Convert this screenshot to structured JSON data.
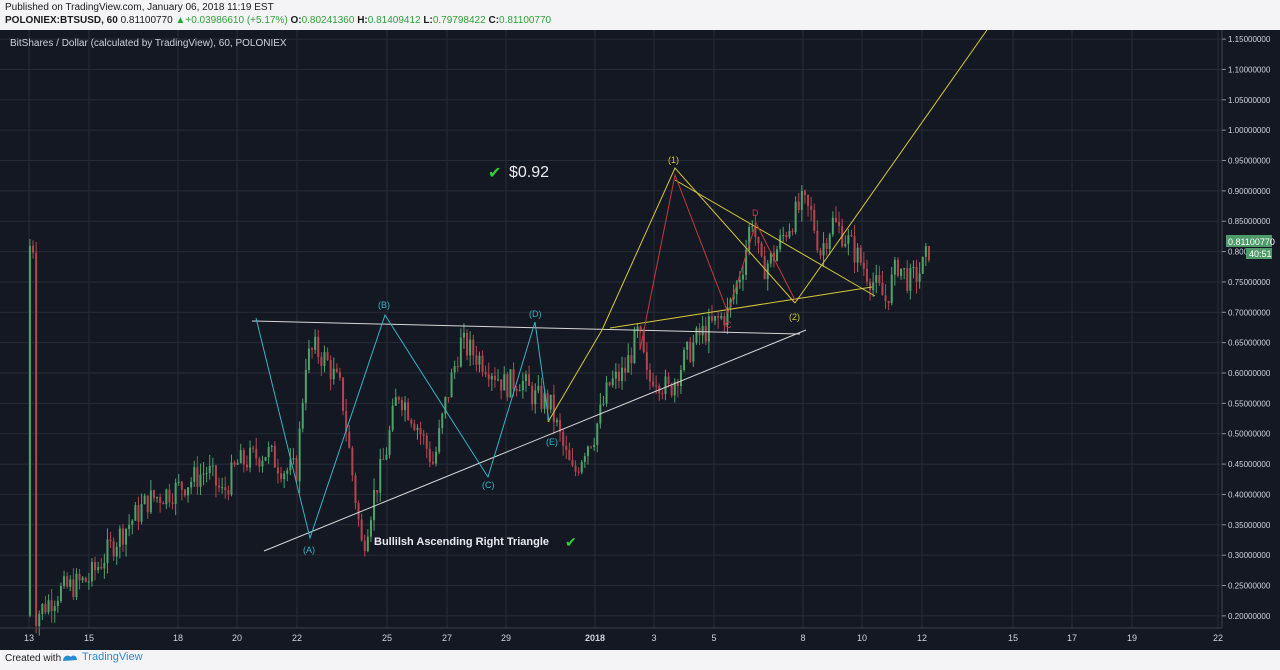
{
  "header": {
    "published": "Published on TradingView.com, January 06, 2018 11:19 EST",
    "symbol": "POLONIEX:BTSUSD, 60",
    "price": "0.81100770",
    "change": "+0.03986610 (+5.17%)",
    "o_label": "O:",
    "o": "0.80241360",
    "h_label": "H:",
    "h": "0.81409412",
    "l_label": "L:",
    "l": "0.79798422",
    "c_label": "C:",
    "c": "0.81100770"
  },
  "footer": {
    "created": "Created with",
    "brand": "TradingView"
  },
  "colors": {
    "background": "#141823",
    "up": "#4fa36a",
    "down": "#b4454f",
    "wave": "#37b4c4",
    "triangle": "#d7d7d7",
    "yellow": "#d6c83a",
    "red": "#c23b3b",
    "price_tag": "#4e9c6a"
  },
  "chart_data": {
    "type": "candlestick",
    "title": "BitShares / Dollar (calculated by TradingView), 60, POLONIEX",
    "ylim": [
      0.18,
      1.165
    ],
    "y_ticks": [
      "1.15000000",
      "1.10000000",
      "1.05000000",
      "1.00000000",
      "0.95000000",
      "0.90000000",
      "0.85000000",
      "0.80000000",
      "0.75000000",
      "0.70000000",
      "0.65000000",
      "0.60000000",
      "0.55000000",
      "0.50000000",
      "0.45000000",
      "0.40000000",
      "0.35000000",
      "0.30000000",
      "0.25000000",
      "0.20000000"
    ],
    "x_ticks": [
      "13",
      "15",
      "18",
      "20",
      "22",
      "25",
      "27",
      "29",
      "2018",
      "3",
      "5",
      "8",
      "10",
      "12",
      "15",
      "17",
      "19",
      "22"
    ],
    "last_price": "0.81100770",
    "countdown": "40:51",
    "close_path": [
      [
        0.2,
        0.2
      ],
      [
        1.0,
        0.24
      ],
      [
        2.0,
        0.26
      ],
      [
        3.0,
        0.33
      ],
      [
        4.0,
        0.39
      ],
      [
        5.0,
        0.41
      ],
      [
        6.0,
        0.44
      ],
      [
        6.5,
        0.4
      ],
      [
        7.0,
        0.45
      ],
      [
        8.0,
        0.47
      ],
      [
        8.6,
        0.44
      ],
      [
        9.0,
        0.44
      ],
      [
        9.3,
        0.62
      ],
      [
        9.6,
        0.64
      ],
      [
        10.0,
        0.62
      ],
      [
        10.5,
        0.57
      ],
      [
        11.2,
        0.31
      ],
      [
        11.6,
        0.4
      ],
      [
        12.0,
        0.47
      ],
      [
        12.4,
        0.57
      ],
      [
        13.0,
        0.52
      ],
      [
        13.6,
        0.45
      ],
      [
        14.0,
        0.55
      ],
      [
        14.5,
        0.65
      ],
      [
        15.0,
        0.63
      ],
      [
        15.5,
        0.61
      ],
      [
        16.0,
        0.58
      ],
      [
        16.5,
        0.59
      ],
      [
        17.0,
        0.56
      ],
      [
        17.5,
        0.55
      ],
      [
        18.0,
        0.47
      ],
      [
        18.3,
        0.43
      ],
      [
        18.7,
        0.48
      ],
      [
        19.0,
        0.5
      ],
      [
        19.5,
        0.58
      ],
      [
        20.0,
        0.6
      ],
      [
        20.5,
        0.67
      ],
      [
        20.8,
        0.58
      ],
      [
        21.0,
        0.6
      ],
      [
        21.5,
        0.57
      ],
      [
        22.0,
        0.62
      ],
      [
        22.5,
        0.66
      ],
      [
        23.0,
        0.68
      ],
      [
        23.5,
        0.7
      ],
      [
        24.0,
        0.78
      ],
      [
        24.3,
        0.86
      ],
      [
        24.6,
        0.77
      ],
      [
        25.0,
        0.79
      ],
      [
        25.5,
        0.84
      ],
      [
        26.0,
        0.88
      ],
      [
        26.3,
        0.86
      ],
      [
        26.6,
        0.8
      ],
      [
        27.0,
        0.85
      ],
      [
        27.5,
        0.82
      ],
      [
        28.0,
        0.78
      ],
      [
        28.5,
        0.74
      ],
      [
        28.8,
        0.72
      ],
      [
        29.2,
        0.78
      ],
      [
        29.6,
        0.75
      ],
      [
        30.0,
        0.77
      ],
      [
        30.3,
        0.81
      ]
    ]
  },
  "annotations": {
    "target": "$0.92",
    "pattern": "Bullilsh Ascending Right Triangle",
    "waves": [
      "(A)",
      "(B)",
      "(C)",
      "(D)",
      "(E)"
    ],
    "impulse": [
      "(1)",
      "(2)"
    ],
    "abcd": [
      "C",
      "D"
    ]
  }
}
